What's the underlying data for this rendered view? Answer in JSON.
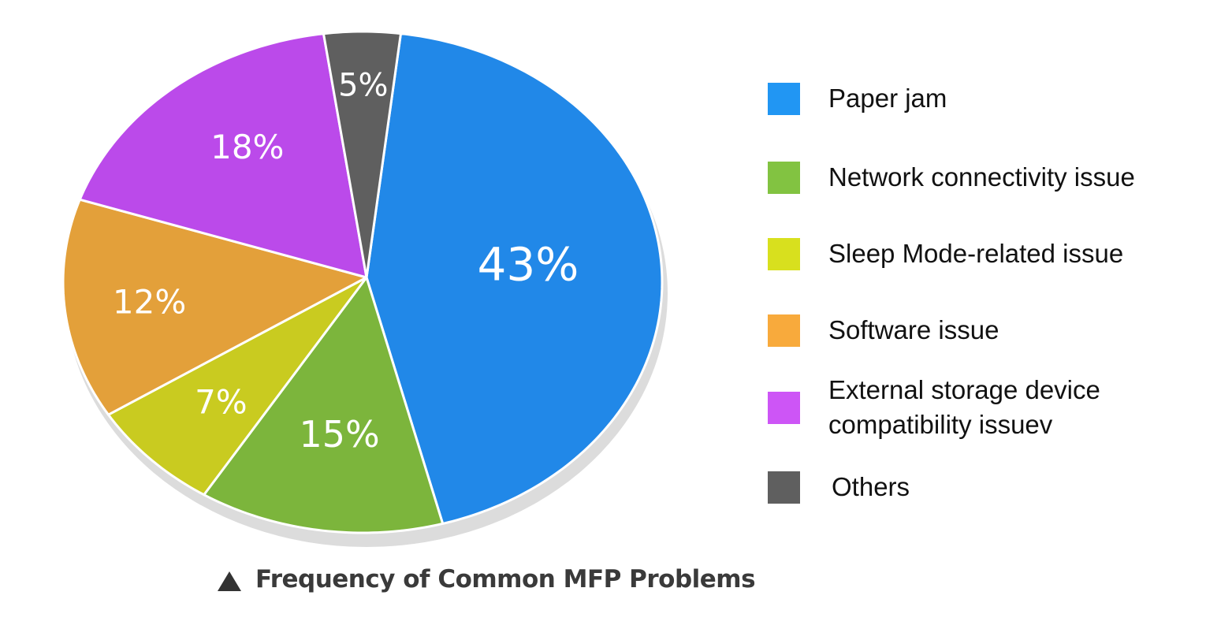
{
  "chart_data": {
    "type": "pie",
    "title": "Frequency of Common MFP Problems",
    "slices": [
      {
        "label": "Paper jam",
        "value": 43,
        "value_label": "43%",
        "color": "#2188e8"
      },
      {
        "label": "Network connectivity issue",
        "value": 15,
        "value_label": "15%",
        "color": "#7cb53c"
      },
      {
        "label": "Sleep Mode-related issue",
        "value": 7,
        "value_label": "7%",
        "color": "#c9cb20"
      },
      {
        "label": "Software issue",
        "value": 12,
        "value_label": "12%",
        "color": "#e3a03a"
      },
      {
        "label": "External storage device\ncompatibility issuev",
        "value": 18,
        "value_label": "18%",
        "color": "#bb4aea"
      },
      {
        "label": "Others",
        "value": 5,
        "value_label": "5%",
        "color": "#5f5f5f"
      }
    ],
    "legend": [
      {
        "label": "Paper jam",
        "color": "#2196f3"
      },
      {
        "label": "Network connectivity issue",
        "color": "#82c341"
      },
      {
        "label": "Sleep Mode-related issue",
        "color": "#d8e01e"
      },
      {
        "label": "Software issue",
        "color": "#f8aa3c"
      },
      {
        "label": "External storage device\ncompatibility issuev",
        "color": "#cd55f6"
      },
      {
        "label": "Others",
        "color": "#5f5f5f"
      }
    ],
    "legend_position": "right"
  },
  "caption": {
    "icon": "triangle-up-icon",
    "text": "Frequency of Common MFP Problems"
  }
}
